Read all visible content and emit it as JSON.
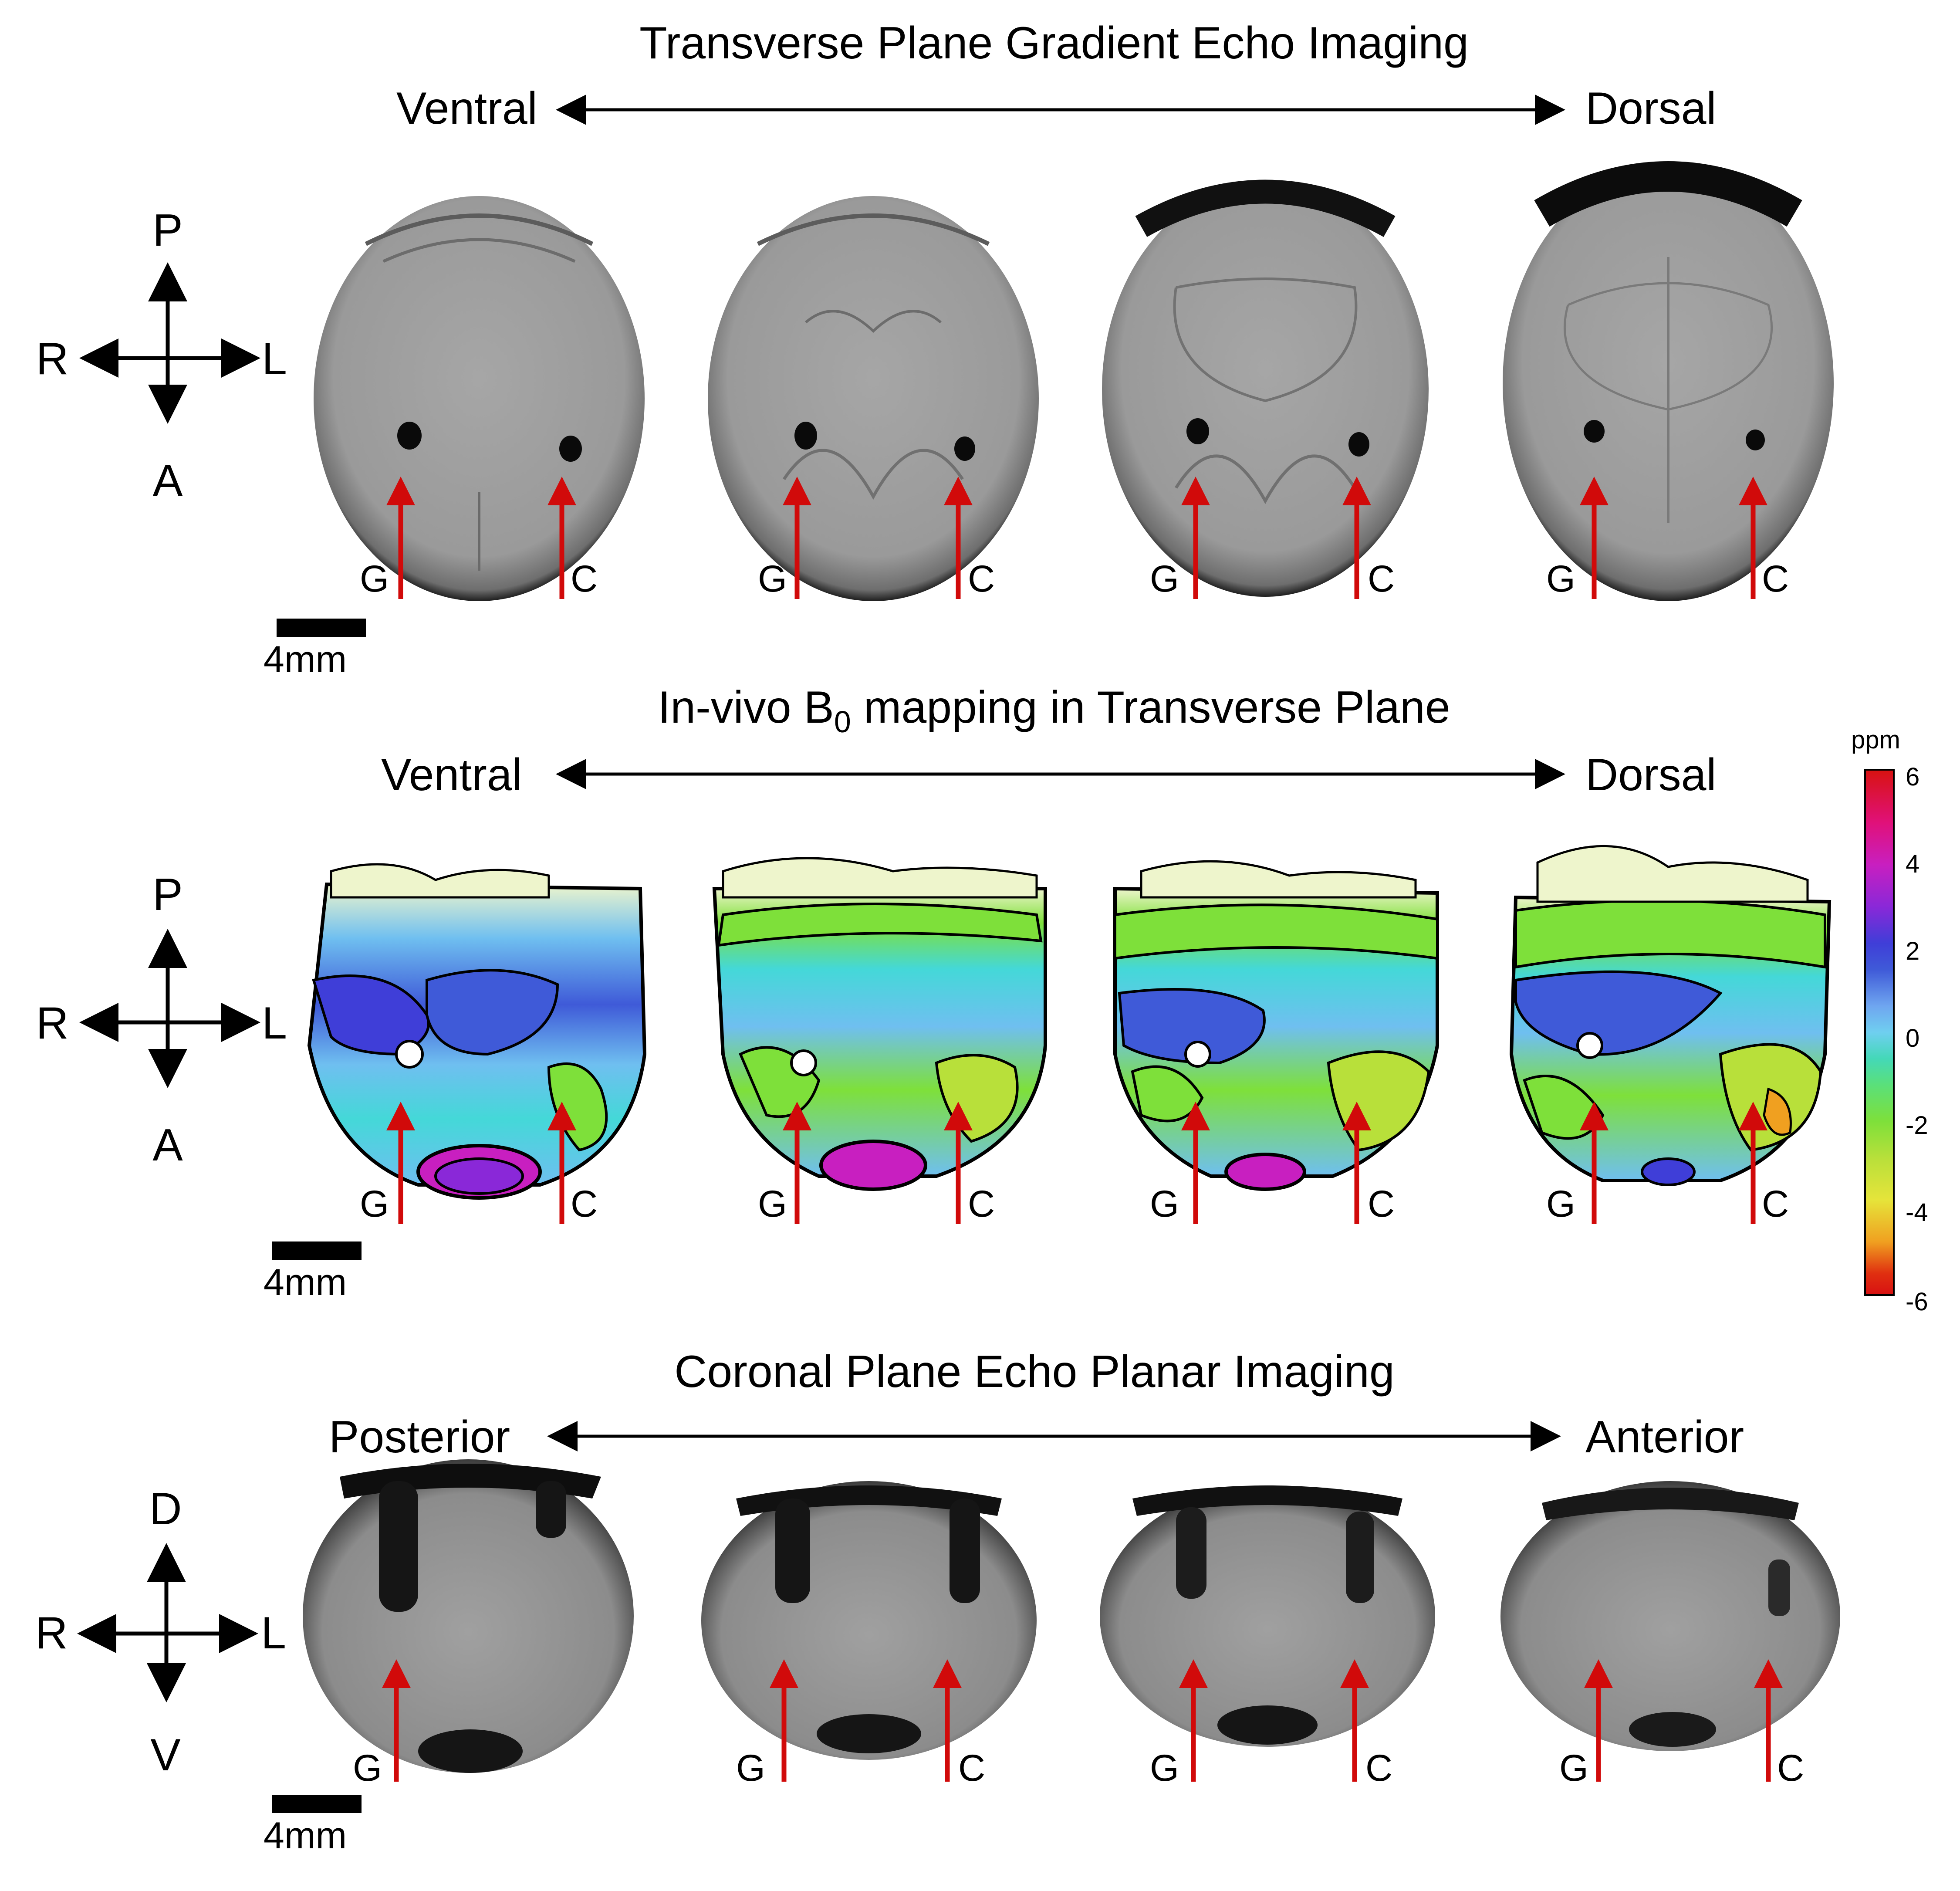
{
  "panels": [
    {
      "title": "Transverse Plane Gradient Echo Imaging",
      "direction_left": "Ventral",
      "direction_right": "Dorsal",
      "orientation": {
        "top": "P",
        "bottom": "A",
        "left": "R",
        "right": "L"
      },
      "scale_label": "4mm",
      "marker_left": "G",
      "marker_right": "C"
    },
    {
      "title_prefix": "In-vivo B",
      "title_sub": "0",
      "title_suffix": " mapping in Transverse Plane",
      "direction_left": "Ventral",
      "direction_right": "Dorsal",
      "orientation": {
        "top": "P",
        "bottom": "A",
        "left": "R",
        "right": "L"
      },
      "scale_label": "4mm",
      "marker_left": "G",
      "marker_right": "C"
    },
    {
      "title": "Coronal Plane Echo Planar Imaging",
      "direction_left": "Posterior",
      "direction_right": "Anterior",
      "orientation": {
        "top": "D",
        "bottom": "V",
        "left": "R",
        "right": "L"
      },
      "scale_label": "4mm",
      "marker_left": "G",
      "marker_right": "C"
    }
  ],
  "colorbar": {
    "unit": "ppm",
    "ticks": [
      "6",
      "4",
      "2",
      "0",
      "-2",
      "-4",
      "-6"
    ]
  },
  "colors": {
    "arrow_red": "#d10a0a",
    "map_blue": "#3f5ad8",
    "map_lightblue": "#6fbff0",
    "map_cyan": "#44d8d8",
    "map_green": "#7ee03a",
    "map_yellow": "#e6e43a",
    "map_magenta": "#c81fc0",
    "map_red": "#d81212"
  }
}
